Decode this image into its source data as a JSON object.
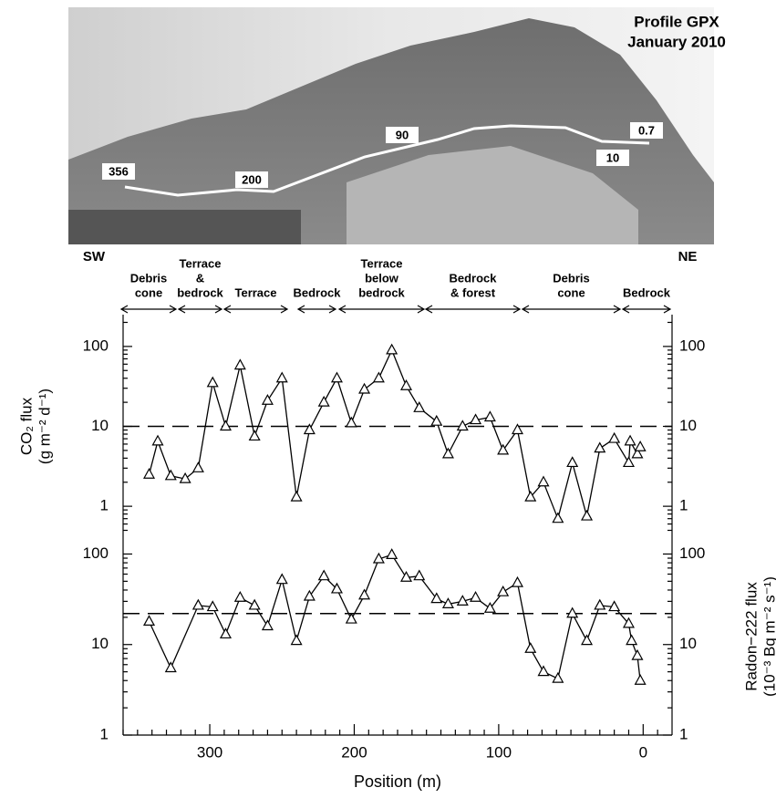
{
  "photo": {
    "title": [
      "Profile GPX",
      "January 2010"
    ],
    "labels": [
      "356",
      "200",
      "90",
      "10",
      "0.7"
    ],
    "left": "SW",
    "right": "NE"
  },
  "zones": [
    [
      "Debris",
      "cone"
    ],
    [
      "Terrace",
      "&",
      "bedrock"
    ],
    [
      "Terrace"
    ],
    [
      "Bedrock"
    ],
    [
      "Terrace",
      "below",
      "bedrock"
    ],
    [
      "Bedrock",
      "& forest"
    ],
    [
      "Debris",
      "cone"
    ],
    [
      "Bedrock"
    ]
  ],
  "chart_data": [
    {
      "type": "line",
      "ylabel": [
        "CO₂ flux",
        "(g m⁻² d⁻¹)"
      ],
      "log_y": true,
      "color": "#000",
      "x": [
        342,
        336,
        327,
        317,
        308,
        298,
        289,
        279,
        269,
        260,
        250,
        240,
        231,
        221,
        212,
        202,
        193,
        183,
        174,
        164,
        155,
        143,
        135,
        125,
        116,
        106,
        97,
        87,
        78,
        69,
        59,
        49,
        39,
        30,
        20,
        10,
        9,
        4,
        2
      ],
      "values": [
        2.5,
        6.5,
        2.4,
        2.2,
        3,
        35,
        10,
        58,
        7.5,
        21,
        40,
        1.3,
        9,
        20,
        40,
        11,
        29,
        40,
        90,
        32,
        17,
        11.5,
        4.5,
        10,
        12,
        13,
        5,
        9,
        1.3,
        2,
        0.7,
        3.5,
        0.75,
        5.3,
        7,
        3.5,
        6.5,
        4.5,
        5.5
      ],
      "reference": 10,
      "xlim": [
        360,
        -20
      ],
      "ylim": [
        0.4,
        250
      ],
      "yticks": [
        1,
        10,
        100
      ],
      "yminorticks": [
        0.5,
        0.6,
        0.7,
        0.8,
        0.9,
        2,
        3,
        4,
        5,
        6,
        7,
        8,
        9,
        20,
        30,
        40,
        50,
        60,
        70,
        80,
        90,
        200
      ]
    },
    {
      "type": "line",
      "ylabel": [
        "Radon−222 flux",
        "(10⁻³ Bq m⁻² s⁻¹)"
      ],
      "log_y": true,
      "color": "#000",
      "x": [
        342,
        327,
        308,
        298,
        289,
        279,
        269,
        260,
        250,
        240,
        231,
        221,
        212,
        202,
        193,
        183,
        174,
        164,
        155,
        143,
        135,
        125,
        116,
        106,
        97,
        87,
        78,
        69,
        59,
        49,
        39,
        30,
        20,
        10,
        8,
        4,
        2
      ],
      "values": [
        18,
        5.5,
        27,
        26,
        13,
        33,
        27,
        16,
        52,
        11,
        34,
        57,
        41,
        19,
        35,
        88,
        98,
        55,
        57,
        32,
        28,
        30,
        33,
        25,
        38,
        48,
        9,
        5,
        4.2,
        22,
        11,
        27,
        26,
        17,
        11,
        7.5,
        4
      ],
      "reference": 22,
      "xlim": [
        360,
        -20
      ],
      "ylim": [
        1,
        150
      ],
      "yticks": [
        1,
        10,
        100
      ],
      "yminorticks": [
        2,
        3,
        4,
        5,
        6,
        7,
        8,
        9,
        20,
        30,
        40,
        50,
        60,
        70,
        80,
        90
      ],
      "xticks": [
        300,
        200,
        100,
        0
      ],
      "xminorticks": [
        360,
        350,
        340,
        330,
        320,
        310,
        290,
        280,
        270,
        260,
        250,
        240,
        230,
        220,
        210,
        190,
        180,
        170,
        160,
        150,
        140,
        130,
        120,
        110,
        90,
        80,
        70,
        60,
        50,
        40,
        30,
        20,
        10,
        -10
      ],
      "xlabel": "Position (m)"
    }
  ]
}
